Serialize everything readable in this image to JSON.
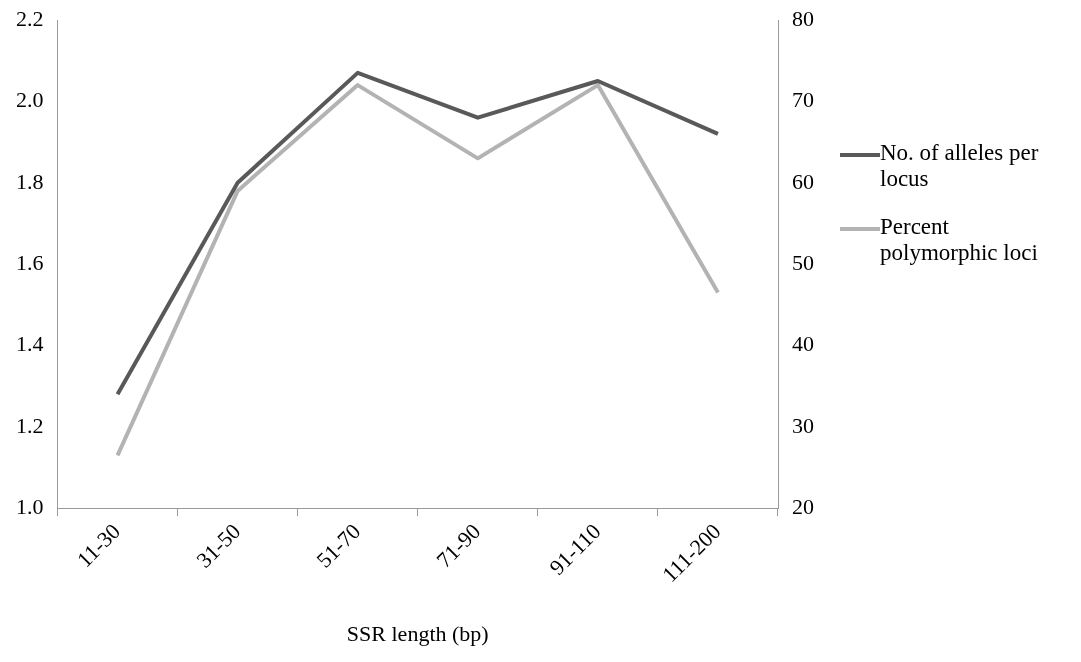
{
  "chart_data": {
    "type": "line",
    "xlabel": "SSR length (bp)",
    "categories": [
      "11-30",
      "31-50",
      "51-70",
      "71-90",
      "91-110",
      "111-200"
    ],
    "series": [
      {
        "name": "No. of alleles per locus",
        "color": "#595959",
        "values": [
          1.28,
          1.8,
          2.07,
          1.96,
          2.05,
          1.92
        ]
      },
      {
        "name": "Percent polymorphic loci",
        "color": "#b3b3b3",
        "axis": "y2",
        "values": [
          26.5,
          59,
          72,
          63,
          72,
          46.5
        ]
      }
    ],
    "ylim": [
      1.0,
      2.2
    ],
    "yticks": [
      {
        "value": 1.0,
        "label": "1.0"
      },
      1.2,
      1.4,
      1.6,
      1.8,
      {
        "value": 2.0,
        "label": "2.0"
      },
      2.2
    ],
    "y2lim": [
      20,
      80
    ],
    "y2ticks": [
      20,
      30,
      40,
      50,
      60,
      70,
      80
    ],
    "grid": false,
    "legend": "right",
    "marker": "none",
    "line_style": "solid"
  }
}
